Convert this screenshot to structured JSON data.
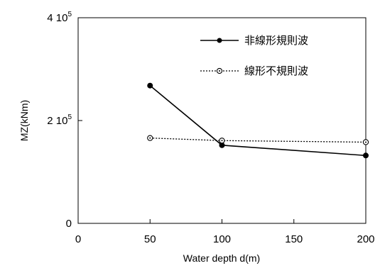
{
  "chart_data": {
    "type": "line",
    "title": "",
    "xlabel": "Water depth d(m)",
    "ylabel": "MZ(kNm)",
    "xlim": [
      0,
      200
    ],
    "ylim": [
      0,
      400000
    ],
    "x_ticks": [
      "0",
      "50",
      "100",
      "150",
      "200"
    ],
    "y_ticks": [
      {
        "value": 0,
        "base": "0",
        "exp": ""
      },
      {
        "value": 200000,
        "base": "2 10",
        "exp": "5"
      },
      {
        "value": 400000,
        "base": "4 10",
        "exp": "5"
      }
    ],
    "grid": false,
    "legend_position": "top-right",
    "series": [
      {
        "name": "非線形規則波",
        "style": "solid",
        "marker": "filled-circle",
        "color": "#000000",
        "x": [
          50,
          100,
          200
        ],
        "y": [
          268000,
          152000,
          132000
        ]
      },
      {
        "name": "線形不規則波",
        "style": "dotted",
        "marker": "open-circle",
        "color": "#000000",
        "x": [
          50,
          100,
          200
        ],
        "y": [
          166000,
          161000,
          158000
        ]
      }
    ]
  }
}
